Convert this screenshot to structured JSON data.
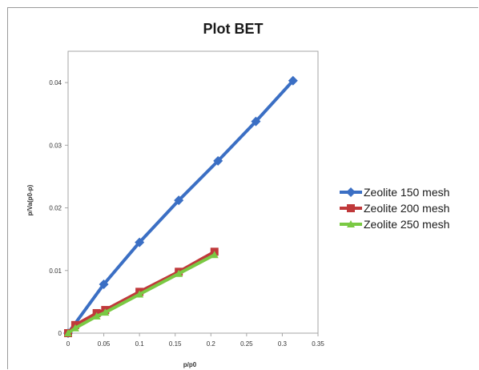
{
  "chart_data": {
    "type": "line",
    "title": "Plot BET",
    "xlabel": "p/p0",
    "ylabel": "p/Va(p0-p)",
    "xlim": [
      0,
      0.35
    ],
    "ylim": [
      0,
      0.045
    ],
    "xticks": [
      0,
      0.05,
      0.1,
      0.15,
      0.2,
      0.25,
      0.3,
      0.35
    ],
    "xtick_labels": [
      "0",
      "0.05",
      "0.1",
      "0.15",
      "0.2",
      "0.25",
      "0.3",
      "0.35"
    ],
    "yticks": [
      0,
      0.01,
      0.02,
      0.03,
      0.04
    ],
    "ytick_labels": [
      "0",
      "0.01",
      "0.02",
      "0.03",
      "0.04"
    ],
    "grid": false,
    "legend_position": "right",
    "series": [
      {
        "name": "Zeolite 150 mesh",
        "color": "#3b6fc4",
        "marker": "diamond",
        "x": [
          0,
          0.05,
          0.1,
          0.155,
          0.21,
          0.263,
          0.315
        ],
        "y": [
          0,
          0.0078,
          0.0145,
          0.0212,
          0.0275,
          0.0338,
          0.0403
        ]
      },
      {
        "name": "Zeolite 200 mesh",
        "color": "#c0393b",
        "marker": "square",
        "x": [
          0,
          0.01,
          0.04,
          0.052,
          0.1,
          0.155,
          0.205
        ],
        "y": [
          0,
          0.0013,
          0.0032,
          0.0037,
          0.0066,
          0.0098,
          0.013
        ]
      },
      {
        "name": "Zeolite 250 mesh",
        "color": "#7ac943",
        "marker": "triangle",
        "x": [
          0,
          0.01,
          0.04,
          0.052,
          0.1,
          0.155,
          0.205
        ],
        "y": [
          0,
          0.0008,
          0.0027,
          0.0033,
          0.0062,
          0.0095,
          0.0125
        ]
      }
    ]
  }
}
